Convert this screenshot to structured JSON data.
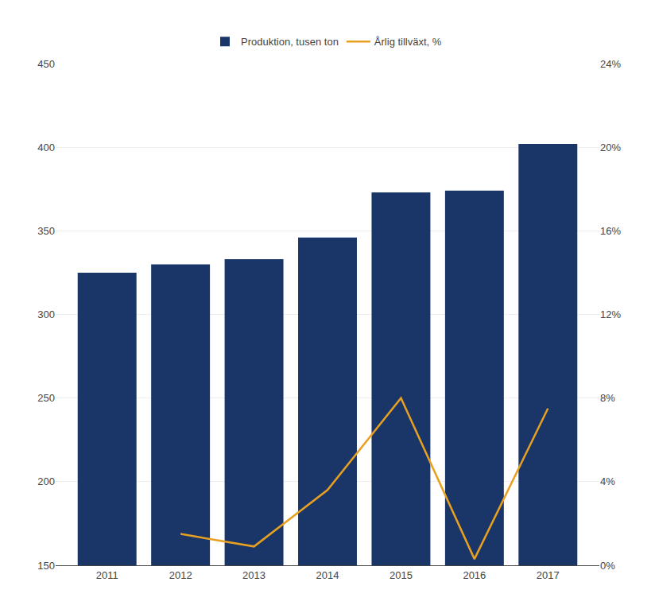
{
  "chart_data": {
    "type": "bar",
    "x": [
      2011,
      2012,
      2013,
      2014,
      2015,
      2016,
      2017
    ],
    "xlim": [
      2010.3,
      2017.7
    ],
    "xticks": [
      2011,
      2012,
      2013,
      2014,
      2015,
      2016,
      2017
    ],
    "series": [
      {
        "name": "Produktion, tusen ton",
        "type": "bar",
        "color": "#1a3668",
        "values": [
          325,
          330,
          333,
          346,
          373,
          374,
          402
        ]
      },
      {
        "name": "Årlig tillväxt, %",
        "type": "line",
        "color": "#e8a020",
        "axis": "y2",
        "values": [
          null,
          1.5,
          0.9,
          3.6,
          8.0,
          0.3,
          7.5
        ]
      }
    ],
    "ylim": [
      150,
      450
    ],
    "yticks": [
      150,
      200,
      250,
      300,
      350,
      400,
      450
    ],
    "y2lim": [
      0,
      24
    ],
    "y2ticks": [
      {
        "value": 0,
        "label": "0%"
      },
      {
        "value": 4,
        "label": "4%"
      },
      {
        "value": 8,
        "label": "8%"
      },
      {
        "value": 12,
        "label": "12%"
      },
      {
        "value": 16,
        "label": "16%"
      },
      {
        "value": 20,
        "label": "20%"
      },
      {
        "value": 24,
        "label": "24%"
      }
    ],
    "grid": true,
    "legend": "top"
  }
}
